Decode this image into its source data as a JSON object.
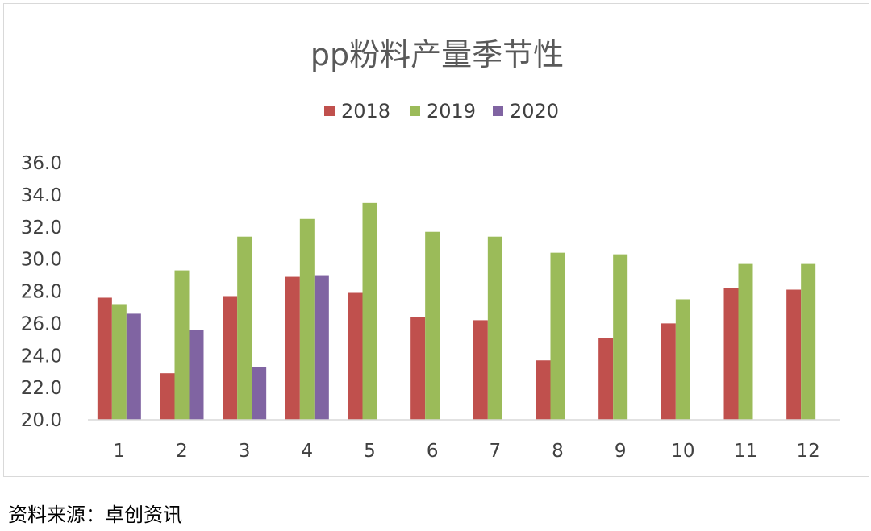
{
  "chart_data": {
    "type": "bar",
    "title": "pp粉料产量季节性",
    "categories": [
      "1",
      "2",
      "3",
      "4",
      "5",
      "6",
      "7",
      "8",
      "9",
      "10",
      "11",
      "12"
    ],
    "series": [
      {
        "name": "2018",
        "color": "#c0504d",
        "values": [
          27.6,
          22.9,
          27.7,
          28.9,
          27.9,
          26.4,
          26.2,
          23.7,
          25.1,
          26.0,
          28.2,
          28.1
        ]
      },
      {
        "name": "2019",
        "color": "#9bbb59",
        "values": [
          27.2,
          29.3,
          31.4,
          32.5,
          33.5,
          31.7,
          31.4,
          30.4,
          30.3,
          27.5,
          29.7,
          29.7
        ]
      },
      {
        "name": "2020",
        "color": "#8064a2",
        "values": [
          26.6,
          25.6,
          23.3,
          29.0,
          null,
          null,
          null,
          null,
          null,
          null,
          null,
          null
        ]
      }
    ],
    "ylim": [
      20.0,
      36.0
    ],
    "yticks": [
      "36.0",
      "34.0",
      "32.0",
      "30.0",
      "28.0",
      "26.0",
      "24.0",
      "22.0",
      "20.0"
    ],
    "legend_position": "top-center",
    "grid": false
  },
  "source_note": "资料来源：卓创资讯"
}
